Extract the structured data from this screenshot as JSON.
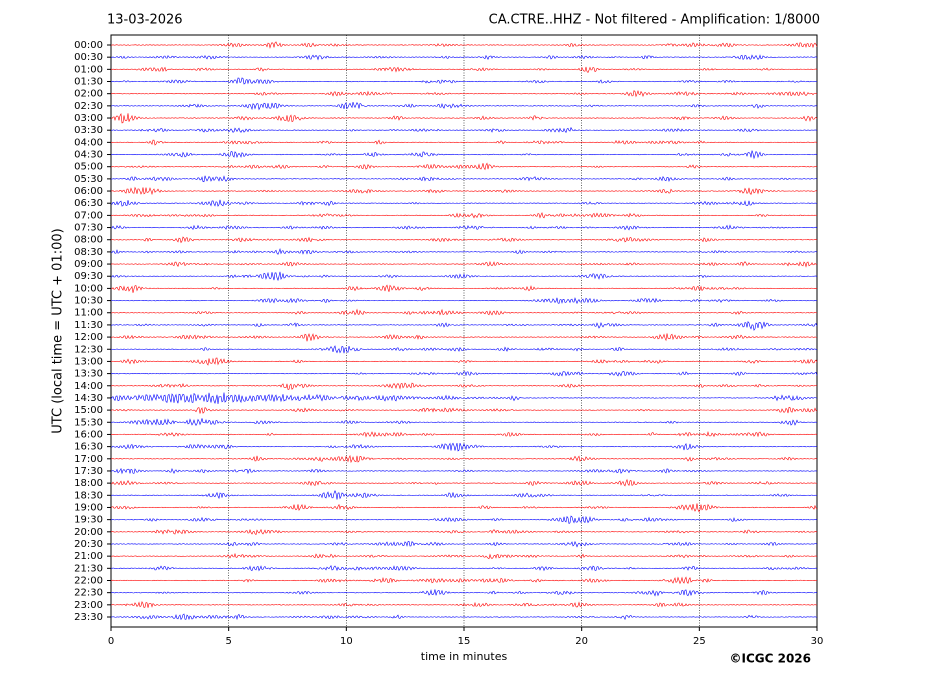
{
  "chart_data": {
    "type": "seismogram",
    "title_left": "13-03-2026",
    "title": "CA.CTRE..HHZ - Not filtered - Amplification: 1/8000",
    "ylabel": "UTC (local time = UTC + 01:00)",
    "xlabel": "time in minutes",
    "credit": "©ICGC 2026",
    "categories": [
      "00:00",
      "00:30",
      "01:00",
      "01:30",
      "02:00",
      "02:30",
      "03:00",
      "03:30",
      "04:00",
      "04:30",
      "05:00",
      "05:30",
      "06:00",
      "06:30",
      "07:00",
      "07:30",
      "08:00",
      "08:30",
      "09:00",
      "09:30",
      "10:00",
      "10:30",
      "11:00",
      "11:30",
      "12:00",
      "12:30",
      "13:00",
      "13:30",
      "14:00",
      "14:30",
      "15:00",
      "15:30",
      "16:00",
      "16:30",
      "17:00",
      "17:30",
      "18:00",
      "18:30",
      "19:00",
      "19:30",
      "20:00",
      "20:30",
      "21:00",
      "21:30",
      "22:00",
      "22:30",
      "23:00",
      "23:30"
    ],
    "colors": [
      "#ff0000",
      "#0000ff"
    ],
    "xlim": [
      0,
      30
    ],
    "xticks": [
      0,
      5,
      10,
      15,
      20,
      25,
      30
    ],
    "grid": true
  }
}
